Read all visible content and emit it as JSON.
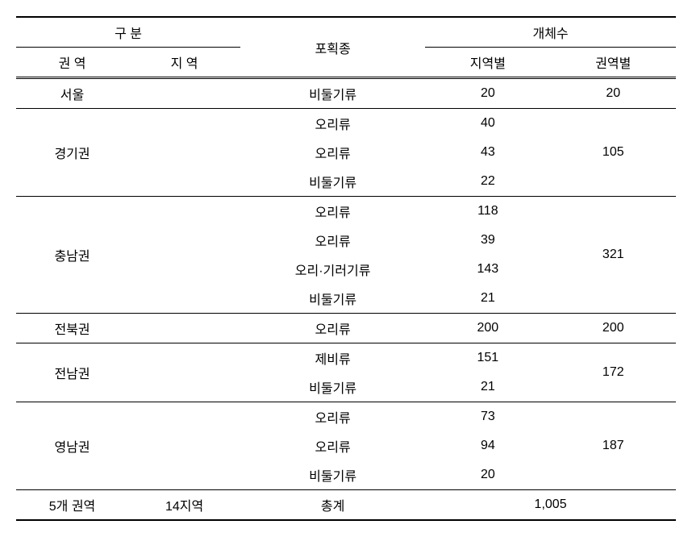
{
  "headers": {
    "division": "구   분",
    "zone": "권   역",
    "region": "지   역",
    "species": "포획종",
    "count": "개체수",
    "byRegion": "지역별",
    "byZone": "권역별"
  },
  "rows": {
    "seoul": {
      "zone": "서울",
      "species1": "비둘기류",
      "count1": "20",
      "total": "20"
    },
    "gyeonggi": {
      "zone": "경기권",
      "species1": "오리류",
      "species2": "오리류",
      "species3": "비둘기류",
      "count1": "40",
      "count2": "43",
      "count3": "22",
      "total": "105"
    },
    "chungnam": {
      "zone": "충남권",
      "species1": "오리류",
      "species2": "오리류",
      "species3": "오리·기러기류",
      "species4": "비둘기류",
      "count1": "118",
      "count2": "39",
      "count3": "143",
      "count4": "21",
      "total": "321"
    },
    "jeonbuk": {
      "zone": "전북권",
      "species1": "오리류",
      "count1": "200",
      "total": "200"
    },
    "jeonnam": {
      "zone": "전남권",
      "species1": "제비류",
      "species2": "비둘기류",
      "count1": "151",
      "count2": "21",
      "total": "172"
    },
    "yeongnam": {
      "zone": "영남권",
      "species1": "오리류",
      "species2": "오리류",
      "species3": "비둘기류",
      "count1": "73",
      "count2": "94",
      "count3": "20",
      "total": "187"
    }
  },
  "footer": {
    "zones": "5개 권역",
    "regions": "14지역",
    "label": "총계",
    "total": "1,005"
  }
}
